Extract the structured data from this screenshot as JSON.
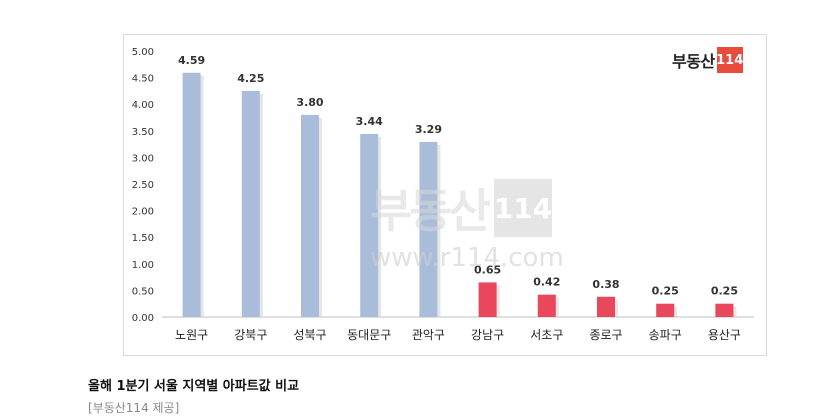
{
  "chart_data": {
    "type": "bar",
    "categories": [
      "노원구",
      "강북구",
      "성북구",
      "동대문구",
      "관악구",
      "강남구",
      "서초구",
      "종로구",
      "송파구",
      "용산구"
    ],
    "values": [
      4.59,
      4.25,
      3.8,
      3.44,
      3.29,
      0.65,
      0.42,
      0.38,
      0.25,
      0.25
    ],
    "value_labels": [
      "4.59",
      "4.25",
      "3.80",
      "3.44",
      "3.29",
      "0.65",
      "0.42",
      "0.38",
      "0.25",
      "0.25"
    ],
    "y_ticks": [
      "5.00",
      "4.50",
      "4.00",
      "3.50",
      "3.00",
      "2.50",
      "2.00",
      "1.50",
      "1.00",
      "0.50",
      "0.00"
    ],
    "ylim": [
      0,
      5
    ],
    "grid": false,
    "colors": {
      "high": "#a9bddb",
      "low": "#e8475c"
    },
    "bar_groups": [
      "high",
      "high",
      "high",
      "high",
      "high",
      "low",
      "low",
      "low",
      "low",
      "low"
    ]
  },
  "brand": {
    "text": "부동산",
    "number": "114",
    "color": "#e84b3c"
  },
  "watermark": {
    "text": "부동산",
    "number": "114",
    "url": "www.r114.com"
  },
  "caption": "올해 1분기 서울 지역별 아파트값 비교",
  "source": "[부동산114 제공]"
}
